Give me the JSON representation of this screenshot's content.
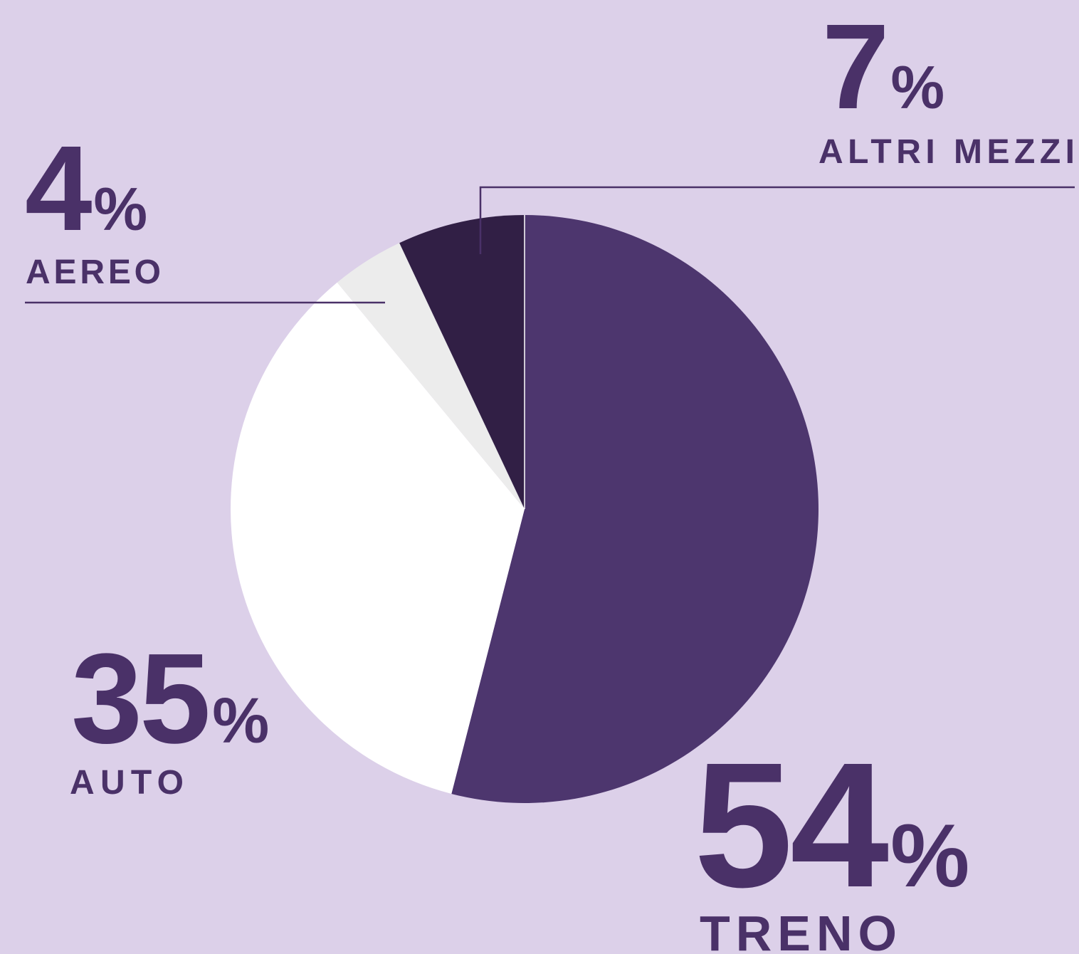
{
  "chart_data": {
    "type": "pie",
    "categories": [
      "TRENO",
      "AUTO",
      "AEREO",
      "ALTRI MEZZI"
    ],
    "values": [
      54,
      35,
      4,
      7
    ],
    "unit": "%",
    "colors": [
      "#4d366e",
      "#ffffff",
      "#ececec",
      "#311f45"
    ]
  }
}
